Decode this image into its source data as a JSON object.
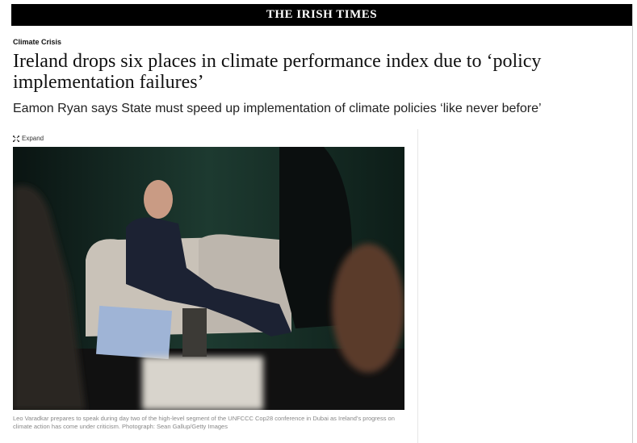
{
  "header": {
    "masthead": "THE IRISH TIMES"
  },
  "article": {
    "section": "Climate Crisis",
    "headline": "Ireland drops six places in climate performance index due to ‘policy implementation failures’",
    "standfirst": "Eamon Ryan says State must speed up implementation of climate policies ‘like never before’"
  },
  "image": {
    "expand_label": "Expand",
    "caption": "Leo Varadkar prepares to speak during day two of the high-level segment of the UNFCCC Cop28 conference in Dubai as Ireland’s progress on climate action has come under criticism. Photograph: Sean Gallup/Getty Images"
  }
}
